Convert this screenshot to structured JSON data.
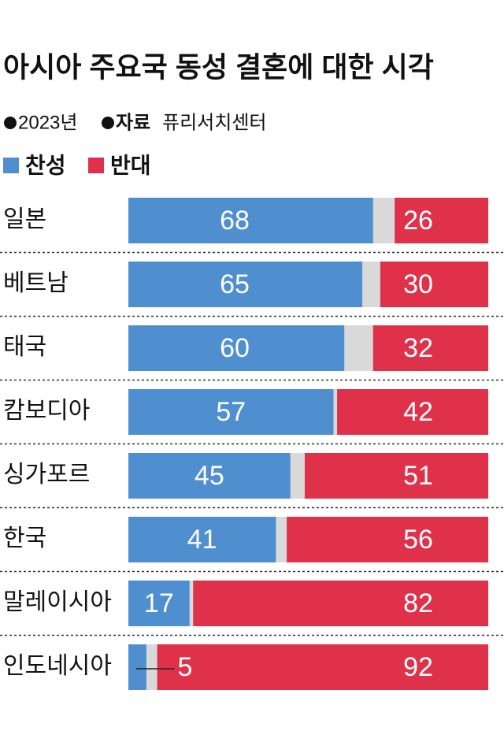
{
  "chart_data": {
    "type": "stacked-bar-diverging",
    "title": "아시아 주요국 동성 결혼에 대한 시각",
    "year": "2023년",
    "source_label": "자료",
    "source": "퓨리서치센터",
    "categories": [
      "일본",
      "베트남",
      "태국",
      "캄보디아",
      "싱가포르",
      "한국",
      "말레이시아",
      "인도네시아"
    ],
    "series": [
      {
        "name": "찬성",
        "color": "#4f8fd0",
        "values": [
          68,
          65,
          60,
          57,
          45,
          41,
          17,
          5
        ]
      },
      {
        "name": "반대",
        "color": "#e0314b",
        "values": [
          26,
          30,
          32,
          42,
          51,
          56,
          82,
          92
        ]
      }
    ],
    "xlim": [
      0,
      100
    ]
  }
}
